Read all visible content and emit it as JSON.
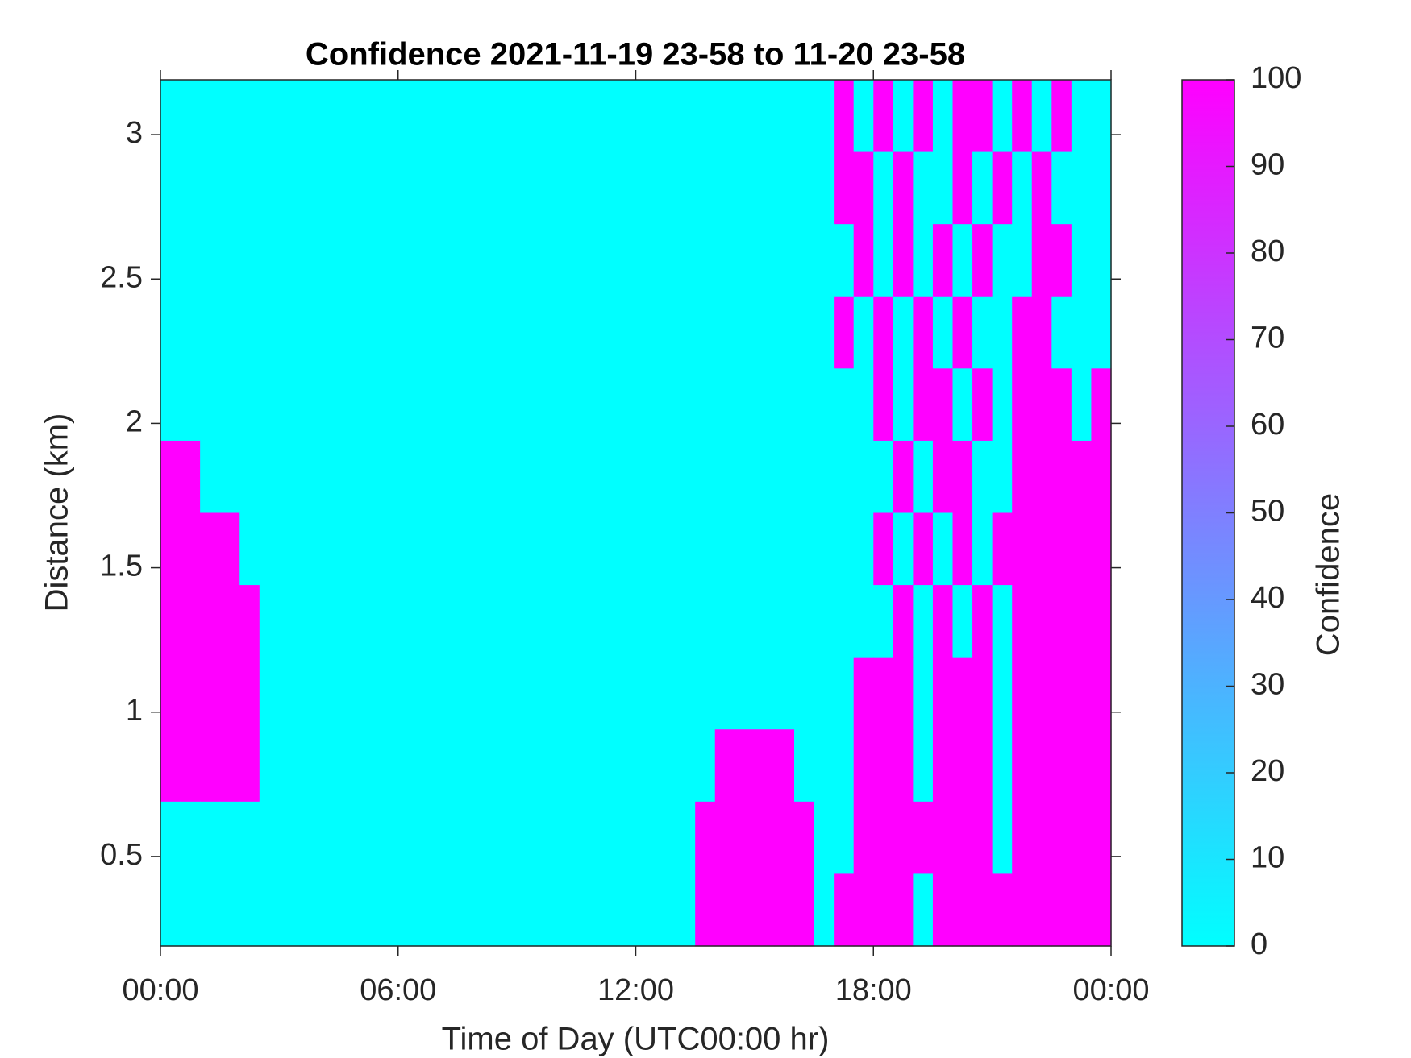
{
  "chart_data": {
    "type": "heatmap",
    "title": "Confidence 2021-11-19 23-58 to 11-20 23-58",
    "xlabel": "Time of Day (UTC00:00 hr)",
    "ylabel": "Distance (km)",
    "colorbar_label": "Confidence",
    "colormap": [
      "#00ffff",
      "#ff00ff"
    ],
    "clim": [
      0,
      100
    ],
    "cticks": [
      0,
      10,
      20,
      30,
      40,
      50,
      60,
      70,
      80,
      90,
      100
    ],
    "xlim": [
      0,
      24
    ],
    "xticks": [
      {
        "value": 0,
        "label": "00:00"
      },
      {
        "value": 6,
        "label": "06:00"
      },
      {
        "value": 12,
        "label": "12:00"
      },
      {
        "value": 18,
        "label": "18:00"
      },
      {
        "value": 24,
        "label": "00:00"
      }
    ],
    "ylim": [
      0.19,
      3.19
    ],
    "yticks": [
      0.5,
      1,
      1.5,
      2,
      2.5,
      3
    ],
    "x_edges": [
      0,
      0.5,
      1,
      1.5,
      2,
      2.5,
      3,
      3.5,
      4,
      4.5,
      5,
      5.5,
      6,
      6.5,
      7,
      7.5,
      8,
      8.5,
      9,
      9.5,
      10,
      10.5,
      11,
      11.5,
      12,
      12.5,
      13,
      13.5,
      14,
      14.5,
      15,
      15.5,
      16,
      16.5,
      17,
      17.5,
      18,
      18.5,
      19,
      19.5,
      20,
      20.5,
      21,
      21.5,
      22,
      22.5,
      23,
      23.5,
      24
    ],
    "y_edges": [
      3.19,
      2.94,
      2.69,
      2.44,
      2.19,
      1.94,
      1.69,
      1.44,
      1.19,
      0.94,
      0.69,
      0.44,
      0.19
    ],
    "z": [
      [
        0,
        0,
        0,
        0,
        0,
        0,
        0,
        0,
        0,
        0,
        0,
        0,
        0,
        0,
        0,
        0,
        0,
        0,
        0,
        0,
        0,
        0,
        0,
        0,
        0,
        0,
        0,
        0,
        0,
        0,
        0,
        0,
        0,
        0,
        100,
        0,
        100,
        0,
        100,
        0,
        100,
        100,
        0,
        100,
        0,
        100,
        0,
        0
      ],
      [
        0,
        0,
        0,
        0,
        0,
        0,
        0,
        0,
        0,
        0,
        0,
        0,
        0,
        0,
        0,
        0,
        0,
        0,
        0,
        0,
        0,
        0,
        0,
        0,
        0,
        0,
        0,
        0,
        0,
        0,
        0,
        0,
        0,
        0,
        100,
        100,
        0,
        100,
        0,
        0,
        100,
        0,
        100,
        0,
        100,
        0,
        0,
        0
      ],
      [
        0,
        0,
        0,
        0,
        0,
        0,
        0,
        0,
        0,
        0,
        0,
        0,
        0,
        0,
        0,
        0,
        0,
        0,
        0,
        0,
        0,
        0,
        0,
        0,
        0,
        0,
        0,
        0,
        0,
        0,
        0,
        0,
        0,
        0,
        0,
        100,
        0,
        100,
        0,
        100,
        0,
        100,
        0,
        0,
        100,
        100,
        0,
        0
      ],
      [
        0,
        0,
        0,
        0,
        0,
        0,
        0,
        0,
        0,
        0,
        0,
        0,
        0,
        0,
        0,
        0,
        0,
        0,
        0,
        0,
        0,
        0,
        0,
        0,
        0,
        0,
        0,
        0,
        0,
        0,
        0,
        0,
        0,
        0,
        100,
        0,
        100,
        0,
        100,
        0,
        100,
        0,
        0,
        100,
        100,
        0,
        0,
        0
      ],
      [
        0,
        0,
        0,
        0,
        0,
        0,
        0,
        0,
        0,
        0,
        0,
        0,
        0,
        0,
        0,
        0,
        0,
        0,
        0,
        0,
        0,
        0,
        0,
        0,
        0,
        0,
        0,
        0,
        0,
        0,
        0,
        0,
        0,
        0,
        0,
        0,
        100,
        0,
        100,
        100,
        0,
        100,
        0,
        100,
        100,
        100,
        0,
        100
      ],
      [
        100,
        100,
        0,
        0,
        0,
        0,
        0,
        0,
        0,
        0,
        0,
        0,
        0,
        0,
        0,
        0,
        0,
        0,
        0,
        0,
        0,
        0,
        0,
        0,
        0,
        0,
        0,
        0,
        0,
        0,
        0,
        0,
        0,
        0,
        0,
        0,
        0,
        100,
        0,
        100,
        100,
        0,
        0,
        100,
        100,
        100,
        100,
        100
      ],
      [
        100,
        100,
        100,
        100,
        0,
        0,
        0,
        0,
        0,
        0,
        0,
        0,
        0,
        0,
        0,
        0,
        0,
        0,
        0,
        0,
        0,
        0,
        0,
        0,
        0,
        0,
        0,
        0,
        0,
        0,
        0,
        0,
        0,
        0,
        0,
        0,
        100,
        0,
        100,
        0,
        100,
        0,
        100,
        100,
        100,
        100,
        100,
        100
      ],
      [
        100,
        100,
        100,
        100,
        100,
        0,
        0,
        0,
        0,
        0,
        0,
        0,
        0,
        0,
        0,
        0,
        0,
        0,
        0,
        0,
        0,
        0,
        0,
        0,
        0,
        0,
        0,
        0,
        0,
        0,
        0,
        0,
        0,
        0,
        0,
        0,
        0,
        100,
        0,
        100,
        0,
        100,
        0,
        100,
        100,
        100,
        100,
        100
      ],
      [
        100,
        100,
        100,
        100,
        100,
        0,
        0,
        0,
        0,
        0,
        0,
        0,
        0,
        0,
        0,
        0,
        0,
        0,
        0,
        0,
        0,
        0,
        0,
        0,
        0,
        0,
        0,
        0,
        0,
        0,
        0,
        0,
        0,
        0,
        0,
        100,
        100,
        100,
        0,
        100,
        100,
        100,
        0,
        100,
        100,
        100,
        100,
        100
      ],
      [
        100,
        100,
        100,
        100,
        100,
        0,
        0,
        0,
        0,
        0,
        0,
        0,
        0,
        0,
        0,
        0,
        0,
        0,
        0,
        0,
        0,
        0,
        0,
        0,
        0,
        0,
        0,
        0,
        100,
        100,
        100,
        100,
        0,
        0,
        0,
        100,
        100,
        100,
        0,
        100,
        100,
        100,
        0,
        100,
        100,
        100,
        100,
        100
      ],
      [
        0,
        0,
        0,
        0,
        0,
        0,
        0,
        0,
        0,
        0,
        0,
        0,
        0,
        0,
        0,
        0,
        0,
        0,
        0,
        0,
        0,
        0,
        0,
        0,
        0,
        0,
        0,
        100,
        100,
        100,
        100,
        100,
        100,
        0,
        0,
        100,
        100,
        100,
        100,
        100,
        100,
        100,
        0,
        100,
        100,
        100,
        100,
        100
      ],
      [
        0,
        0,
        0,
        0,
        0,
        0,
        0,
        0,
        0,
        0,
        0,
        0,
        0,
        0,
        0,
        0,
        0,
        0,
        0,
        0,
        0,
        0,
        0,
        0,
        0,
        0,
        0,
        100,
        100,
        100,
        100,
        100,
        100,
        0,
        100,
        100,
        100,
        100,
        0,
        100,
        100,
        100,
        100,
        100,
        100,
        100,
        100,
        100
      ]
    ]
  }
}
